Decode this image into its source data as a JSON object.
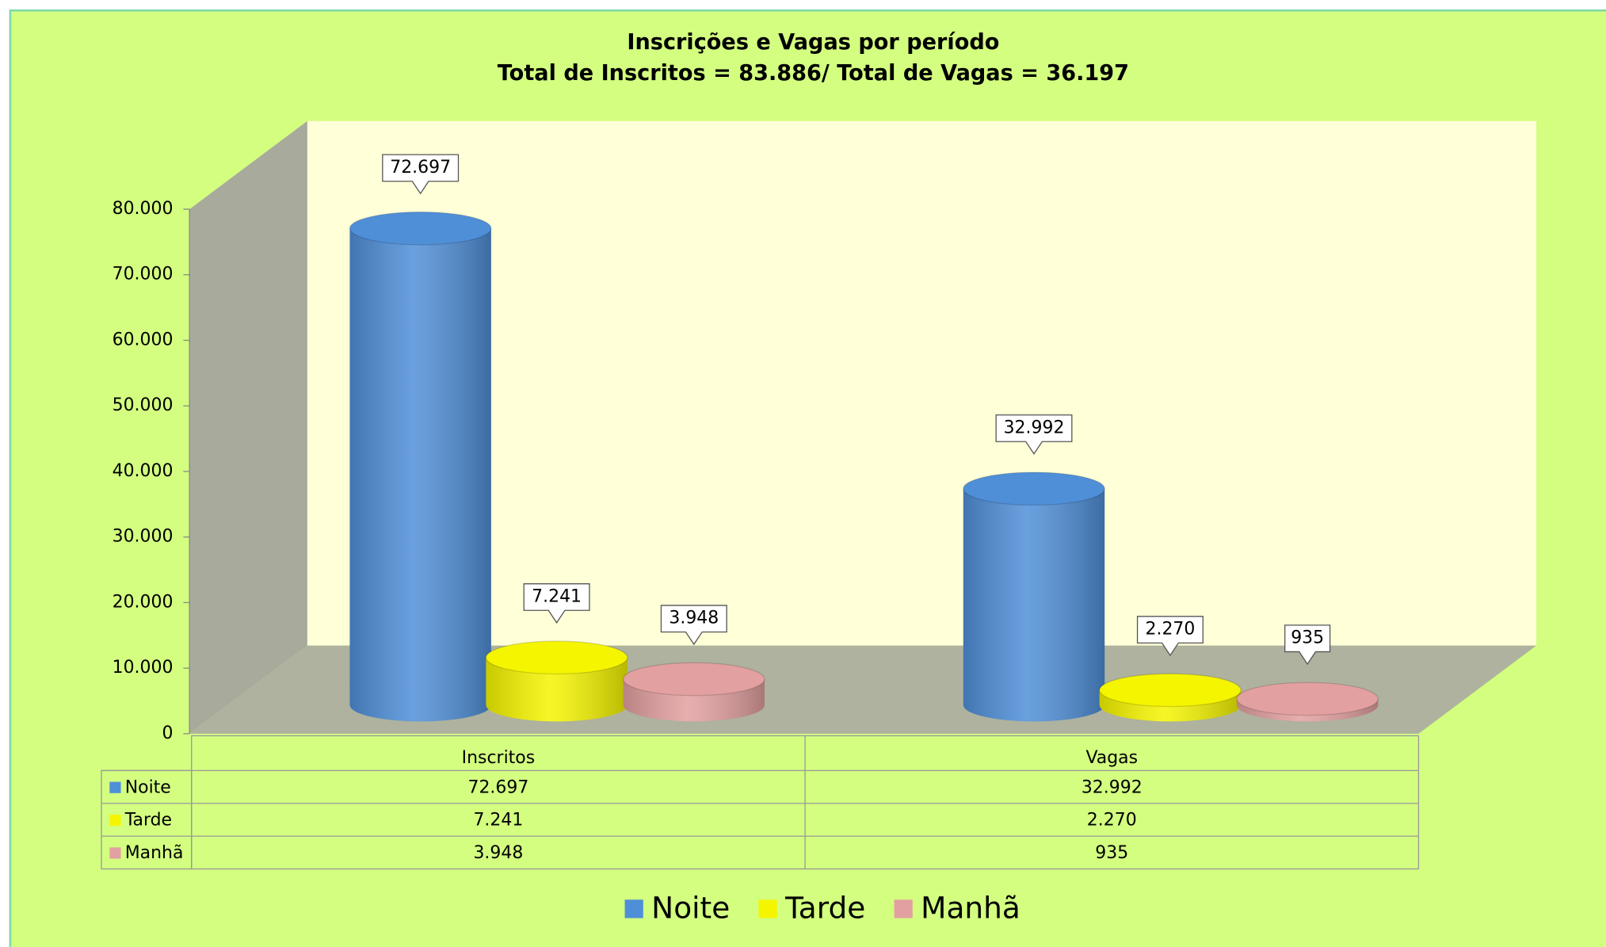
{
  "chart_data": {
    "type": "bar3d",
    "title": "Inscrições e Vagas por período",
    "subtitle": "Total de Inscritos = 83.886/ Total de Vagas = 36.197",
    "categories": [
      "Inscritos",
      "Vagas"
    ],
    "series": [
      {
        "name": "Noite",
        "color": "#4f8fd8",
        "values": [
          72697,
          32992
        ],
        "value_labels": [
          "72.697",
          "32.992"
        ]
      },
      {
        "name": "Tarde",
        "color": "#f5f500",
        "values": [
          7241,
          2270
        ],
        "value_labels": [
          "7.241",
          "2.270"
        ]
      },
      {
        "name": "Manhã",
        "color": "#e3a0a0",
        "values": [
          3948,
          935
        ],
        "value_labels": [
          "3.948",
          "935"
        ]
      }
    ],
    "ylim": [
      0,
      80000
    ],
    "yticks": [
      0,
      {
        "value": 10000,
        "label": "10.000"
      },
      {
        "value": 20000,
        "label": "20.000"
      },
      {
        "value": 30000,
        "label": "30.000"
      },
      {
        "value": 40000,
        "label": "40.000"
      },
      {
        "value": 50000,
        "label": "50.000"
      },
      {
        "value": 60000,
        "label": "60.000"
      },
      {
        "value": 70000,
        "label": "70.000"
      },
      {
        "value": 80000,
        "label": "80.000"
      }
    ],
    "grid": false,
    "data_table": true,
    "legend": "bottom"
  }
}
